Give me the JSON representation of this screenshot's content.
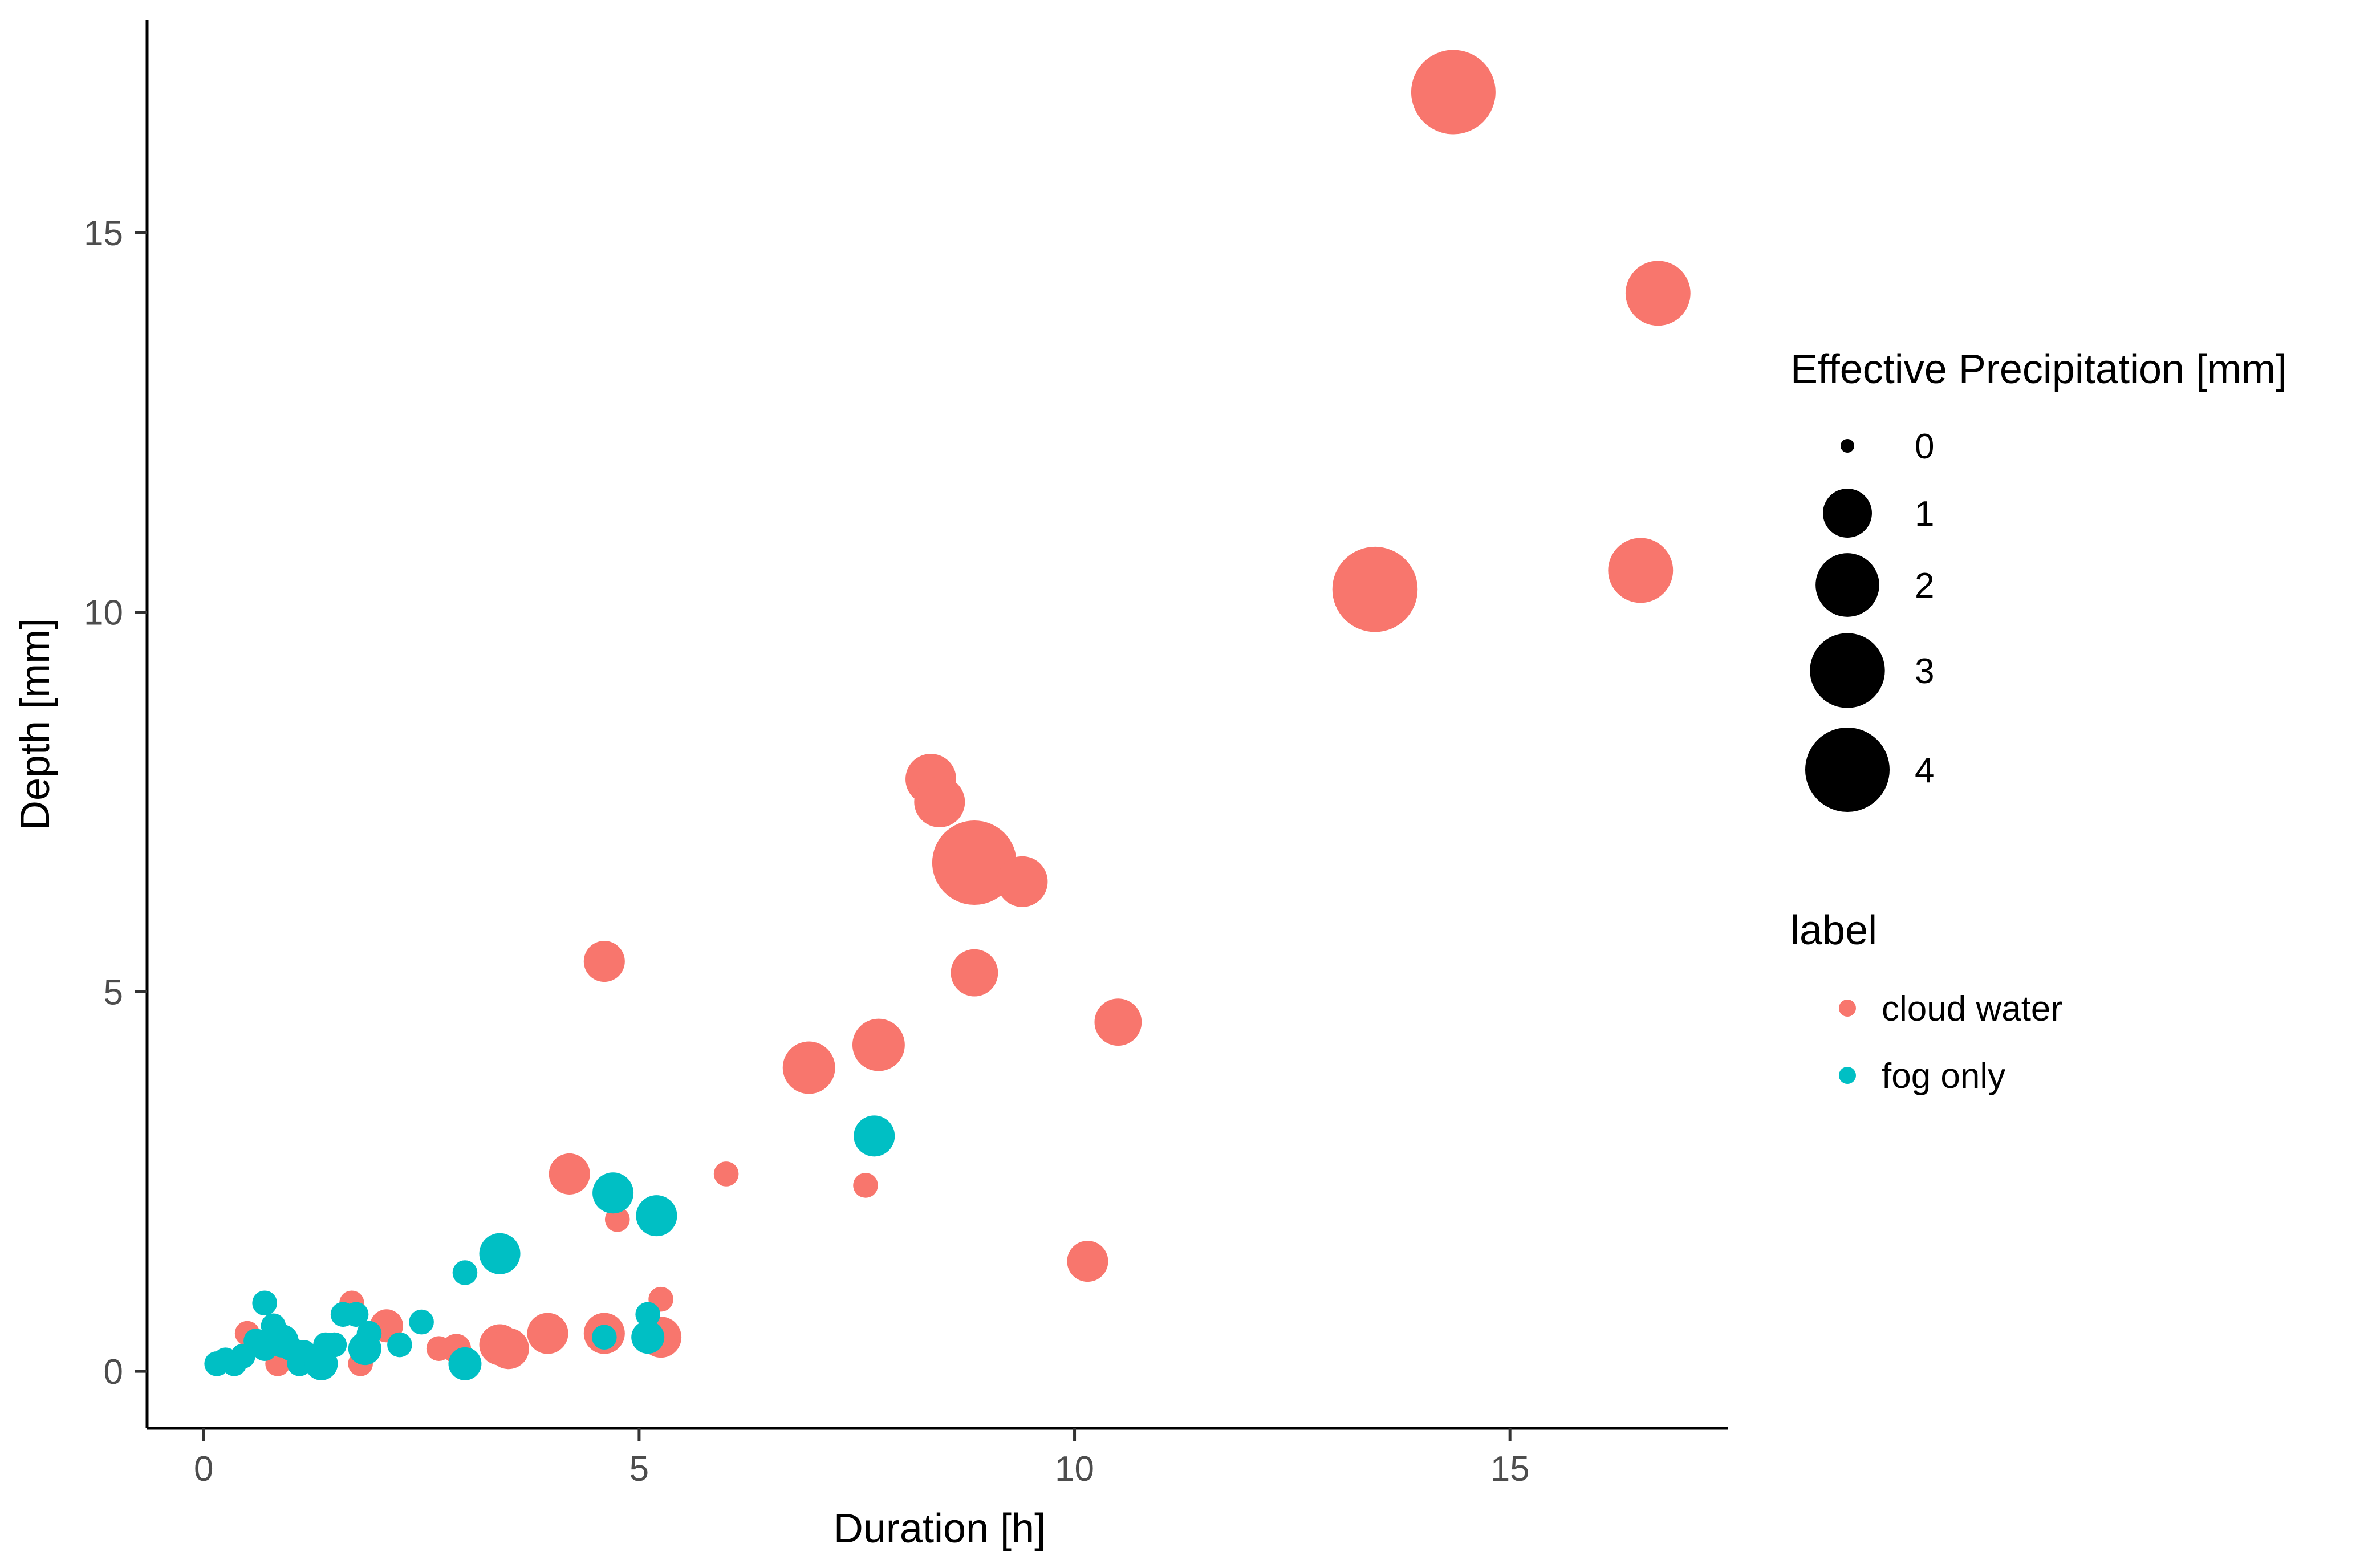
{
  "chart_data": {
    "type": "scatter",
    "title": "",
    "xlabel": "Duration [h]",
    "ylabel": "Depth [mm]",
    "xlim": [
      -0.65,
      17.5
    ],
    "ylim": [
      -0.75,
      17.8
    ],
    "x_ticks": [
      0,
      5,
      10,
      15
    ],
    "y_ticks": [
      0,
      5,
      10,
      15
    ],
    "x_tick_labels": [
      "0",
      "5",
      "10",
      "15"
    ],
    "y_tick_labels": [
      "0",
      "5",
      "10",
      "15"
    ],
    "grid": false,
    "color_legend": {
      "title": "label",
      "entries": [
        {
          "name": "cloud water",
          "color": "#F8766D"
        },
        {
          "name": "fog only",
          "color": "#00BFC4"
        }
      ]
    },
    "size_legend": {
      "title": "Effective Precipitation [mm]",
      "breaks": [
        0,
        1,
        2,
        3,
        4
      ],
      "labels": [
        "0",
        "1",
        "2",
        "3",
        "4"
      ]
    },
    "series": [
      {
        "name": "cloud water",
        "color": "#F8766D",
        "points": [
          {
            "x": 14.35,
            "y": 16.85,
            "size": 4.0
          },
          {
            "x": 16.7,
            "y": 14.2,
            "size": 2.1
          },
          {
            "x": 13.45,
            "y": 10.3,
            "size": 4.1
          },
          {
            "x": 16.5,
            "y": 10.55,
            "size": 2.1
          },
          {
            "x": 8.35,
            "y": 7.8,
            "size": 1.1
          },
          {
            "x": 8.45,
            "y": 7.5,
            "size": 1.1
          },
          {
            "x": 8.85,
            "y": 6.7,
            "size": 4.0
          },
          {
            "x": 9.4,
            "y": 6.45,
            "size": 1.1
          },
          {
            "x": 8.85,
            "y": 5.25,
            "size": 0.9
          },
          {
            "x": 4.6,
            "y": 5.4,
            "size": 0.6
          },
          {
            "x": 10.5,
            "y": 4.6,
            "size": 0.9
          },
          {
            "x": 7.75,
            "y": 4.3,
            "size": 1.2
          },
          {
            "x": 6.95,
            "y": 4.0,
            "size": 1.2
          },
          {
            "x": 4.2,
            "y": 2.6,
            "size": 0.6
          },
          {
            "x": 6.0,
            "y": 2.6,
            "size": 0.1
          },
          {
            "x": 7.6,
            "y": 2.45,
            "size": 0.1
          },
          {
            "x": 4.75,
            "y": 2.0,
            "size": 0.1
          },
          {
            "x": 10.15,
            "y": 1.45,
            "size": 0.6
          },
          {
            "x": 5.25,
            "y": 0.95,
            "size": 0.1
          },
          {
            "x": 1.7,
            "y": 0.9,
            "size": 0.1
          },
          {
            "x": 2.1,
            "y": 0.6,
            "size": 0.3
          },
          {
            "x": 0.5,
            "y": 0.5,
            "size": 0.1
          },
          {
            "x": 3.95,
            "y": 0.5,
            "size": 0.6
          },
          {
            "x": 4.6,
            "y": 0.5,
            "size": 0.6
          },
          {
            "x": 5.25,
            "y": 0.45,
            "size": 0.6
          },
          {
            "x": 3.4,
            "y": 0.35,
            "size": 0.6
          },
          {
            "x": 3.5,
            "y": 0.3,
            "size": 0.6
          },
          {
            "x": 2.7,
            "y": 0.3,
            "size": 0.1
          },
          {
            "x": 2.9,
            "y": 0.3,
            "size": 0.2
          },
          {
            "x": 0.85,
            "y": 0.1,
            "size": 0.1
          },
          {
            "x": 1.8,
            "y": 0.1,
            "size": 0.1
          }
        ]
      },
      {
        "name": "fog only",
        "color": "#00BFC4",
        "points": [
          {
            "x": 7.7,
            "y": 3.1,
            "size": 0.6
          },
          {
            "x": 4.7,
            "y": 2.35,
            "size": 0.6
          },
          {
            "x": 5.2,
            "y": 2.05,
            "size": 0.6
          },
          {
            "x": 3.4,
            "y": 1.55,
            "size": 0.6
          },
          {
            "x": 3.0,
            "y": 1.3,
            "size": 0.1
          },
          {
            "x": 0.7,
            "y": 0.9,
            "size": 0.1
          },
          {
            "x": 5.1,
            "y": 0.75,
            "size": 0.1
          },
          {
            "x": 1.6,
            "y": 0.75,
            "size": 0.1
          },
          {
            "x": 1.75,
            "y": 0.75,
            "size": 0.1
          },
          {
            "x": 2.5,
            "y": 0.65,
            "size": 0.1
          },
          {
            "x": 0.8,
            "y": 0.6,
            "size": 0.1
          },
          {
            "x": 1.9,
            "y": 0.5,
            "size": 0.1
          },
          {
            "x": 4.6,
            "y": 0.45,
            "size": 0.1
          },
          {
            "x": 5.1,
            "y": 0.45,
            "size": 0.3
          },
          {
            "x": 0.6,
            "y": 0.4,
            "size": 0.1
          },
          {
            "x": 0.9,
            "y": 0.4,
            "size": 0.3
          },
          {
            "x": 1.4,
            "y": 0.35,
            "size": 0.1
          },
          {
            "x": 1.5,
            "y": 0.35,
            "size": 0.1
          },
          {
            "x": 2.25,
            "y": 0.35,
            "size": 0.1
          },
          {
            "x": 0.7,
            "y": 0.3,
            "size": 0.1
          },
          {
            "x": 1.0,
            "y": 0.3,
            "size": 0.1
          },
          {
            "x": 1.85,
            "y": 0.3,
            "size": 0.3
          },
          {
            "x": 1.15,
            "y": 0.25,
            "size": 0.1
          },
          {
            "x": 0.45,
            "y": 0.2,
            "size": 0.1
          },
          {
            "x": 1.3,
            "y": 0.2,
            "size": 0.1
          },
          {
            "x": 0.25,
            "y": 0.15,
            "size": 0.1
          },
          {
            "x": 0.15,
            "y": 0.1,
            "size": 0.1
          },
          {
            "x": 0.35,
            "y": 0.1,
            "size": 0.1
          },
          {
            "x": 1.1,
            "y": 0.1,
            "size": 0.1
          },
          {
            "x": 1.35,
            "y": 0.1,
            "size": 0.3
          },
          {
            "x": 3.0,
            "y": 0.1,
            "size": 0.3
          }
        ]
      }
    ]
  }
}
